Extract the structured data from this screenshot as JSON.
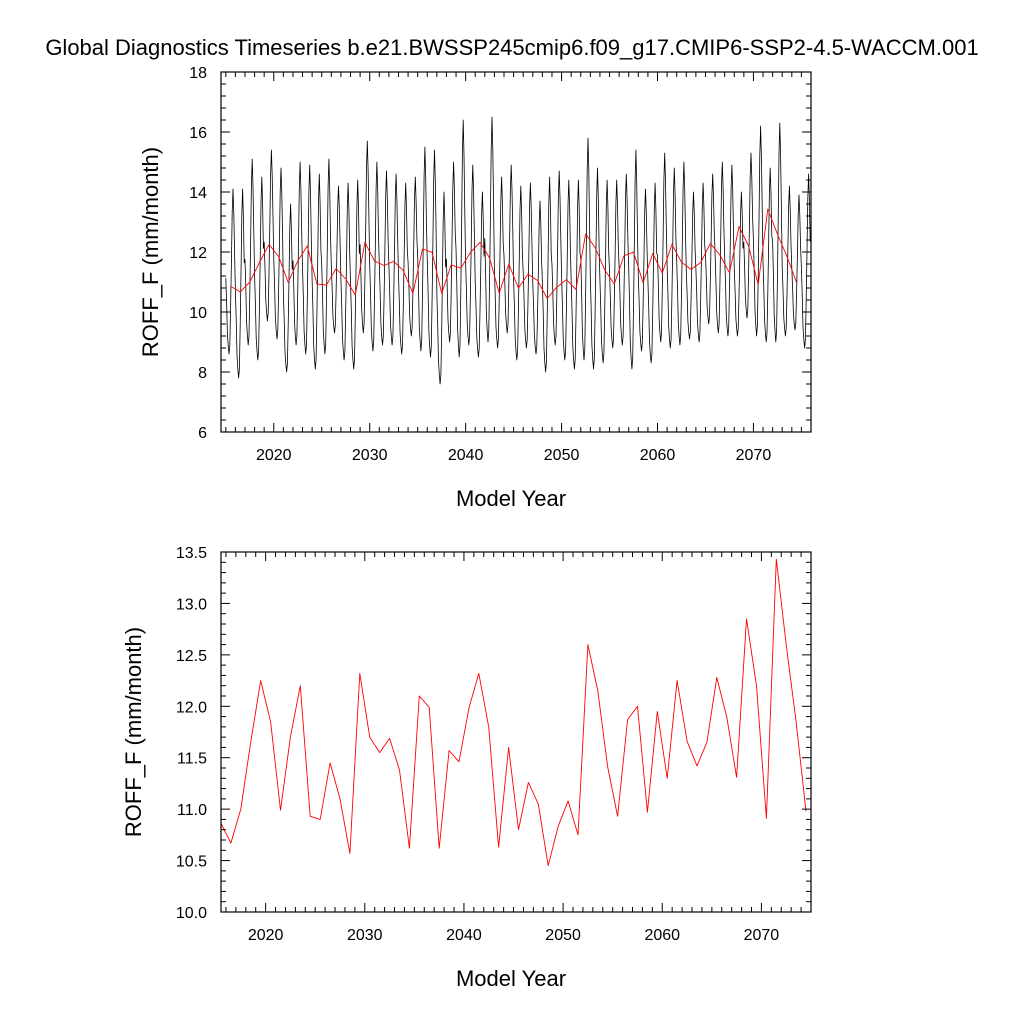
{
  "title": "Global Diagnostics Timeseries b.e21.BWSSP245cmip6.f09_g17.CMIP6-SSP2-4.5-WACCM.001",
  "chart_data": [
    {
      "type": "line",
      "xlabel": "Model Year",
      "ylabel": "ROFF_F (mm/month)",
      "xlim": [
        2014.5,
        2076
      ],
      "ylim": [
        6,
        18
      ],
      "xticks": [
        2020,
        2030,
        2040,
        2050,
        2060,
        2070
      ],
      "yticks": [
        6,
        8,
        10,
        12,
        14,
        16,
        18
      ],
      "ytick_labels": [
        "6",
        "8",
        "10",
        "12",
        "14",
        "16",
        "18"
      ],
      "series": [
        {
          "color": "#000000",
          "kind": "monthly",
          "start_year": 2015,
          "annual_peaks": [
            14.1,
            14.1,
            15.1,
            14.5,
            15.4,
            14.8,
            13.6,
            15.0,
            14.9,
            14.6,
            15.1,
            14.2,
            14.3,
            14.4,
            15.7,
            15.0,
            14.7,
            14.6,
            14.3,
            14.5,
            15.5,
            15.4,
            14.0,
            15.0,
            16.4,
            14.9,
            14.0,
            16.5,
            14.5,
            14.9,
            14.2,
            14.3,
            13.7,
            14.5,
            14.7,
            14.4,
            14.4,
            15.8,
            14.8,
            14.4,
            14.4,
            14.6,
            15.4,
            14.1,
            14.3,
            15.3,
            14.8,
            15.0,
            14.0,
            14.3,
            14.6,
            15.0,
            14.9,
            14.0,
            15.3,
            16.2,
            14.8,
            16.3,
            14.2,
            13.9,
            14.6
          ],
          "annual_troughs": [
            8.6,
            7.8,
            8.9,
            8.4,
            9.7,
            9.1,
            8.0,
            8.9,
            8.6,
            8.1,
            8.6,
            9.3,
            8.4,
            8.1,
            9.3,
            8.7,
            8.9,
            8.9,
            8.6,
            9.2,
            8.7,
            8.5,
            7.6,
            9.0,
            8.5,
            8.9,
            8.5,
            9.0,
            8.8,
            9.3,
            8.4,
            8.8,
            8.6,
            8.0,
            8.9,
            8.4,
            8.1,
            8.4,
            8.1,
            8.3,
            8.8,
            8.9,
            8.1,
            8.7,
            8.3,
            9.0,
            8.8,
            8.9,
            9.1,
            9.0,
            9.6,
            9.3,
            9.2,
            9.2,
            9.8,
            9.2,
            9.0,
            9.0,
            9.2,
            9.4,
            8.8
          ]
        },
        {
          "color": "#ff0000",
          "kind": "annual",
          "x": [
            2015.5,
            2016.5,
            2017.5,
            2018.5,
            2019.5,
            2020.5,
            2021.5,
            2022.5,
            2023.5,
            2024.5,
            2025.5,
            2026.5,
            2027.5,
            2028.5,
            2029.5,
            2030.5,
            2031.5,
            2032.5,
            2033.5,
            2034.5,
            2035.5,
            2036.5,
            2037.5,
            2038.5,
            2039.5,
            2040.5,
            2041.5,
            2042.5,
            2043.5,
            2044.5,
            2045.5,
            2046.5,
            2047.5,
            2048.5,
            2049.5,
            2050.5,
            2051.5,
            2052.5,
            2053.5,
            2054.5,
            2055.5,
            2056.5,
            2057.5,
            2058.5,
            2059.5,
            2060.5,
            2061.5,
            2062.5,
            2063.5,
            2064.5,
            2065.5,
            2066.5,
            2067.5,
            2068.5,
            2069.5,
            2070.5,
            2071.5,
            2072.5,
            2073.5,
            2074.5
          ],
          "values": [
            10.86,
            10.67,
            11.0,
            11.65,
            12.25,
            11.85,
            10.99,
            11.7,
            12.2,
            10.93,
            10.9,
            11.45,
            11.1,
            10.57,
            12.32,
            11.7,
            11.55,
            11.69,
            11.38,
            10.62,
            12.1,
            11.99,
            10.62,
            11.57,
            11.46,
            11.98,
            12.32,
            11.8,
            10.63,
            11.6,
            10.8,
            11.26,
            11.05,
            10.45,
            10.83,
            11.08,
            10.75,
            12.6,
            12.15,
            11.41,
            10.93,
            11.87,
            12.0,
            10.97,
            11.95,
            11.3,
            12.25,
            11.66,
            11.42,
            11.65,
            12.28,
            11.9,
            11.31,
            12.85,
            12.2,
            10.91,
            13.43,
            12.6,
            11.85,
            10.98
          ]
        }
      ]
    },
    {
      "type": "line",
      "xlabel": "Model Year",
      "ylabel": "ROFF_F (mm/month)",
      "xlim": [
        2015.5,
        2075
      ],
      "ylim": [
        10.0,
        13.5
      ],
      "xticks": [
        2020,
        2030,
        2040,
        2050,
        2060,
        2070
      ],
      "yticks": [
        10.0,
        10.5,
        11.0,
        11.5,
        12.0,
        12.5,
        13.0,
        13.5
      ],
      "ytick_labels": [
        "10.0",
        "10.5",
        "11.0",
        "11.5",
        "12.0",
        "12.5",
        "13.0",
        "13.5"
      ],
      "series": [
        {
          "color": "#ff0000",
          "kind": "annual",
          "x": [
            2015.5,
            2016.5,
            2017.5,
            2018.5,
            2019.5,
            2020.5,
            2021.5,
            2022.5,
            2023.5,
            2024.5,
            2025.5,
            2026.5,
            2027.5,
            2028.5,
            2029.5,
            2030.5,
            2031.5,
            2032.5,
            2033.5,
            2034.5,
            2035.5,
            2036.5,
            2037.5,
            2038.5,
            2039.5,
            2040.5,
            2041.5,
            2042.5,
            2043.5,
            2044.5,
            2045.5,
            2046.5,
            2047.5,
            2048.5,
            2049.5,
            2050.5,
            2051.5,
            2052.5,
            2053.5,
            2054.5,
            2055.5,
            2056.5,
            2057.5,
            2058.5,
            2059.5,
            2060.5,
            2061.5,
            2062.5,
            2063.5,
            2064.5,
            2065.5,
            2066.5,
            2067.5,
            2068.5,
            2069.5,
            2070.5,
            2071.5,
            2072.5,
            2073.5,
            2074.5
          ],
          "values": [
            10.86,
            10.67,
            11.0,
            11.65,
            12.25,
            11.85,
            10.99,
            11.7,
            12.2,
            10.93,
            10.9,
            11.45,
            11.1,
            10.57,
            12.32,
            11.7,
            11.55,
            11.69,
            11.38,
            10.62,
            12.1,
            11.99,
            10.62,
            11.57,
            11.46,
            11.98,
            12.32,
            11.8,
            10.63,
            11.6,
            10.8,
            11.26,
            11.05,
            10.45,
            10.83,
            11.08,
            10.75,
            12.6,
            12.15,
            11.41,
            10.93,
            11.87,
            12.0,
            10.97,
            11.95,
            11.3,
            12.25,
            11.66,
            11.42,
            11.65,
            12.28,
            11.9,
            11.31,
            12.85,
            12.2,
            10.91,
            13.43,
            12.6,
            11.85,
            10.98
          ]
        }
      ]
    }
  ]
}
